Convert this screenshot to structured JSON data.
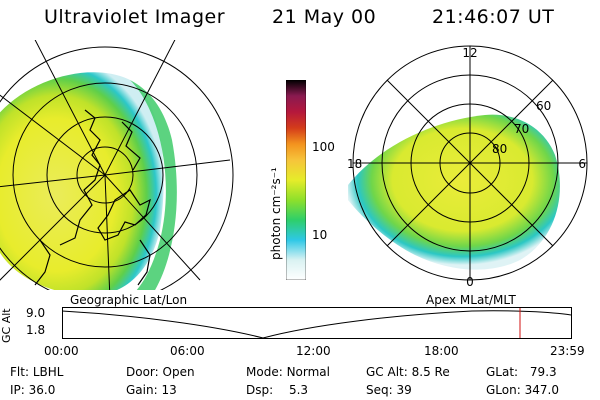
{
  "header": {
    "title": "Ultraviolet Imager",
    "date": "21 May 00",
    "time": "21:46:07 UT"
  },
  "colorbar": {
    "unit_label": "photon cm⁻²s⁻¹",
    "ticks": [
      "100",
      "10"
    ],
    "colors": [
      "#ffffff",
      "#d9f2f2",
      "#2ec8e6",
      "#2ecf6a",
      "#8ee02b",
      "#e6ec2a",
      "#f6c43b",
      "#f3931e",
      "#d43c1a",
      "#b5183c",
      "#8a1a50",
      "#000000"
    ]
  },
  "polar_plot": {
    "mlt_labels": {
      "top": "12",
      "left": "18",
      "right": "6",
      "bottom": "0"
    },
    "lat_labels": [
      "60",
      "70",
      "80"
    ]
  },
  "panels": {
    "left_label": "Geographic Lat/Lon",
    "right_label": "Apex MLat/MLT"
  },
  "altitude_plot": {
    "ylabel": "GC Alt",
    "yticks": [
      "9.0",
      "1.8"
    ],
    "xticks": [
      "00:00",
      "06:00",
      "12:00",
      "18:00",
      "23:59"
    ],
    "marker_time": "21:46",
    "marker_color": "#d01010"
  },
  "info": {
    "flt": {
      "label": "Flt:",
      "value": "LBHL"
    },
    "ip": {
      "label": "IP:",
      "value": "36.0"
    },
    "door": {
      "label": "Door:",
      "value": "Open"
    },
    "gain": {
      "label": "Gain:",
      "value": "13"
    },
    "mode": {
      "label": "Mode:",
      "value": "Normal"
    },
    "dsp": {
      "label": "Dsp:",
      "value": "5.3"
    },
    "gc_alt": {
      "label": "GC Alt:",
      "value": "8.5 Re"
    },
    "seq": {
      "label": "Seq:",
      "value": "39"
    },
    "glat": {
      "label": "GLat:",
      "value": "79.3"
    },
    "glon": {
      "label": "GLon:",
      "value": "347.0"
    }
  }
}
